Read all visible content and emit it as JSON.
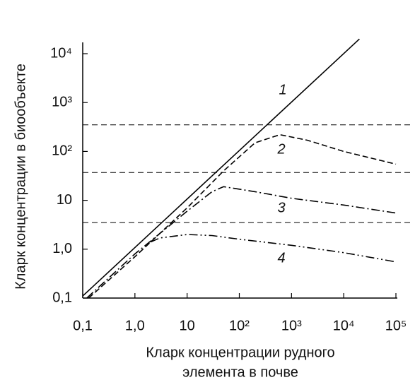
{
  "chart_data": {
    "type": "line",
    "ylabel": "Кларк концентрации в биообъекте",
    "xlabel": [
      "Кларк концентрации рудного",
      "элемента в почве"
    ],
    "xscale": "log",
    "yscale": "log",
    "xlim": [
      0.1,
      100000
    ],
    "ylim": [
      0.1,
      10000
    ],
    "xticks": [
      {
        "value": 0.1,
        "label": "0,1"
      },
      {
        "value": 1,
        "label": "1,0"
      },
      10,
      {
        "value": 100,
        "label": "10²"
      },
      {
        "value": 1000,
        "label": "10³"
      },
      {
        "value": 10000,
        "label": "10⁴"
      },
      {
        "value": 100000,
        "label": "10⁵"
      }
    ],
    "yticks": [
      {
        "value": 0.1,
        "label": "0,1"
      },
      {
        "value": 1,
        "label": "1,0"
      },
      10,
      {
        "value": 100,
        "label": "10²"
      },
      {
        "value": 1000,
        "label": "10³"
      },
      {
        "value": 10000,
        "label": "10⁴"
      }
    ],
    "hlines": [
      350,
      37,
      3.5
    ],
    "series": [
      {
        "name": "1",
        "color": "#000000",
        "linestyle": "solid",
        "x": [
          0.1,
          20000
        ],
        "values": [
          0.11,
          20000
        ]
      },
      {
        "name": "2",
        "color": "#000000",
        "linestyle": "dashed",
        "x": [
          0.13,
          1,
          10,
          50,
          200,
          600,
          2000,
          10000,
          100000
        ],
        "values": [
          0.1,
          0.7,
          7,
          40,
          150,
          220,
          170,
          100,
          55
        ]
      },
      {
        "name": "3",
        "color": "#000000",
        "linestyle": "dashdot",
        "x": [
          0.12,
          1,
          10,
          30,
          50,
          200,
          1000,
          10000,
          100000
        ],
        "values": [
          0.1,
          0.8,
          6,
          15,
          19,
          15,
          11,
          8,
          5.5
        ]
      },
      {
        "name": "4",
        "color": "#000000",
        "linestyle": "dashdotdot",
        "x": [
          2,
          3,
          10,
          30,
          100,
          1000,
          10000,
          100000
        ],
        "values": [
          1.4,
          1.7,
          2,
          1.9,
          1.6,
          1.2,
          0.85,
          0.55
        ]
      }
    ]
  }
}
